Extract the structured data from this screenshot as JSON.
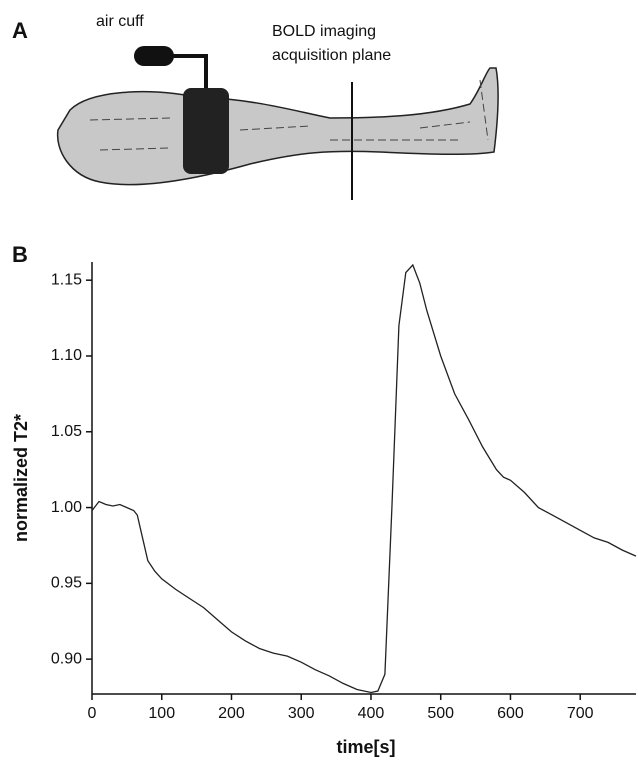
{
  "panel_a": {
    "label": "A",
    "cuff_label": "air cuff",
    "plane_label": [
      "BOLD imaging",
      "acquisition plane"
    ]
  },
  "chart_data": {
    "type": "line",
    "panel_label": "B",
    "x_label": "time[s]",
    "y_label": "normalized T2*",
    "xlim": [
      0,
      780
    ],
    "ylim": [
      0.877,
      1.162
    ],
    "xticks": [
      0,
      100,
      200,
      300,
      400,
      500,
      600,
      700
    ],
    "yticks": [
      {
        "value": 0.9,
        "label": "0.90"
      },
      0.95,
      {
        "value": 1.0,
        "label": "1.00"
      },
      1.05,
      {
        "value": 1.1,
        "label": "1.10"
      },
      1.15
    ],
    "series": [
      {
        "color": "#222222",
        "x": [
          0,
          10,
          20,
          30,
          40,
          50,
          60,
          65,
          70,
          80,
          90,
          100,
          120,
          140,
          160,
          180,
          200,
          220,
          240,
          260,
          280,
          300,
          320,
          340,
          360,
          380,
          400,
          410,
          420,
          430,
          440,
          450,
          460,
          470,
          480,
          500,
          520,
          540,
          560,
          580,
          590,
          600,
          620,
          640,
          660,
          680,
          700,
          720,
          740,
          760,
          780
        ],
        "values": [
          0.998,
          1.004,
          1.002,
          1.001,
          1.002,
          1.0,
          0.998,
          0.995,
          0.985,
          0.965,
          0.958,
          0.953,
          0.946,
          0.94,
          0.934,
          0.926,
          0.918,
          0.912,
          0.907,
          0.904,
          0.902,
          0.898,
          0.893,
          0.889,
          0.884,
          0.88,
          0.878,
          0.879,
          0.89,
          1.0,
          1.12,
          1.155,
          1.16,
          1.148,
          1.13,
          1.1,
          1.075,
          1.058,
          1.04,
          1.025,
          1.02,
          1.018,
          1.01,
          1.0,
          0.995,
          0.99,
          0.985,
          0.98,
          0.977,
          0.972,
          0.968
        ]
      }
    ]
  }
}
